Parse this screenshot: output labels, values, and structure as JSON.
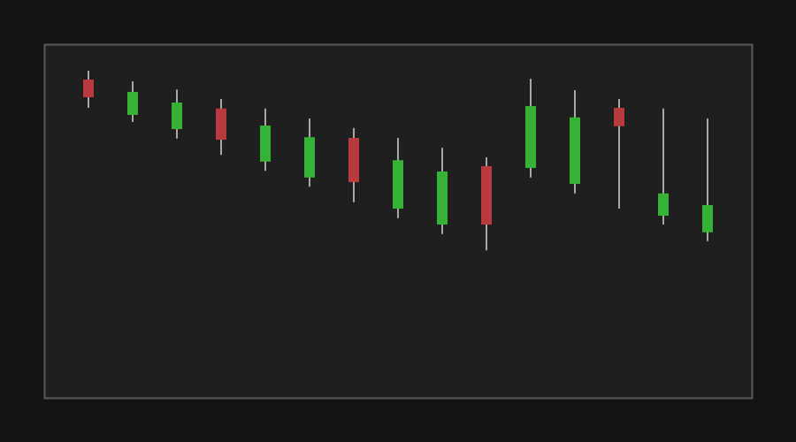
{
  "colors": {
    "page_background": "#141414",
    "plot_background": "#1f1f1f",
    "frame": "#5a5a5a",
    "wick": "#a8a8a8",
    "up": "#36b336",
    "down": "#b83a3f"
  },
  "chart_data": {
    "type": "candlestick",
    "title": "",
    "xlabel": "",
    "ylabel": "",
    "axes_visible": false,
    "grid": false,
    "legend": "none",
    "ylim": [
      0,
      1
    ],
    "candles": [
      {
        "open": 0.9,
        "high": 0.925,
        "low": 0.82,
        "close": 0.85,
        "direction": "down"
      },
      {
        "open": 0.8,
        "high": 0.895,
        "low": 0.78,
        "close": 0.865,
        "direction": "up"
      },
      {
        "open": 0.76,
        "high": 0.872,
        "low": 0.733,
        "close": 0.835,
        "direction": "up"
      },
      {
        "open": 0.818,
        "high": 0.845,
        "low": 0.687,
        "close": 0.73,
        "direction": "down"
      },
      {
        "open": 0.668,
        "high": 0.818,
        "low": 0.642,
        "close": 0.77,
        "direction": "up"
      },
      {
        "open": 0.623,
        "high": 0.79,
        "low": 0.597,
        "close": 0.737,
        "direction": "up"
      },
      {
        "open": 0.735,
        "high": 0.763,
        "low": 0.553,
        "close": 0.61,
        "direction": "down"
      },
      {
        "open": 0.535,
        "high": 0.735,
        "low": 0.508,
        "close": 0.672,
        "direction": "up"
      },
      {
        "open": 0.49,
        "high": 0.707,
        "low": 0.463,
        "close": 0.64,
        "direction": "up"
      },
      {
        "open": 0.655,
        "high": 0.68,
        "low": 0.417,
        "close": 0.49,
        "direction": "down"
      },
      {
        "open": 0.65,
        "high": 0.902,
        "low": 0.623,
        "close": 0.825,
        "direction": "up"
      },
      {
        "open": 0.605,
        "high": 0.87,
        "low": 0.578,
        "close": 0.793,
        "direction": "up"
      },
      {
        "open": 0.82,
        "high": 0.845,
        "low": 0.535,
        "close": 0.768,
        "direction": "down"
      },
      {
        "open": 0.515,
        "high": 0.818,
        "low": 0.49,
        "close": 0.578,
        "direction": "up"
      },
      {
        "open": 0.468,
        "high": 0.79,
        "low": 0.443,
        "close": 0.545,
        "direction": "up"
      }
    ]
  }
}
